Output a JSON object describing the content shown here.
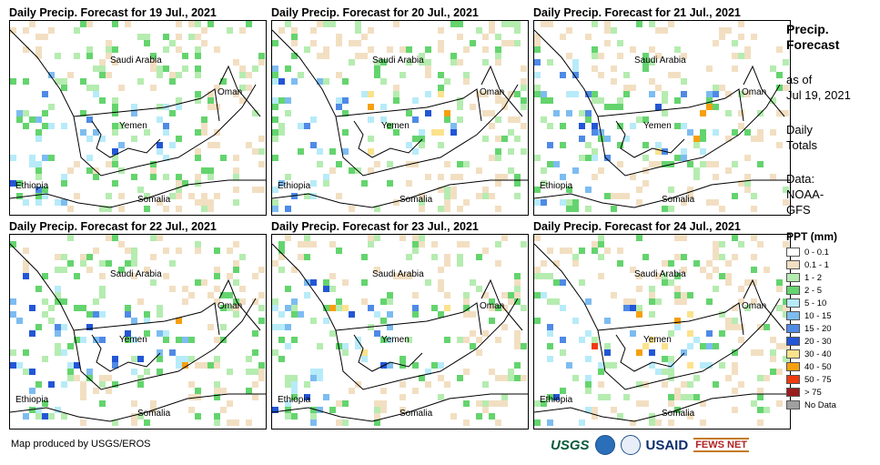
{
  "panels": [
    {
      "title": "Daily Precip. Forecast for 19 Jul., 2021",
      "hot": 1
    },
    {
      "title": "Daily Precip. Forecast for 20 Jul., 2021",
      "hot": 2
    },
    {
      "title": "Daily Precip. Forecast for 21 Jul., 2021",
      "hot": 2
    },
    {
      "title": "Daily Precip. Forecast for 22 Jul., 2021",
      "hot": 2
    },
    {
      "title": "Daily Precip. Forecast for 23 Jul., 2021",
      "hot": 4
    },
    {
      "title": "Daily Precip. Forecast for 24 Jul., 2021",
      "hot": 3
    }
  ],
  "map_labels": {
    "saudi_arabia": "Saudi Arabia",
    "oman": "Oman",
    "yemen": "Yemen",
    "ethiopia": "Ethiopia",
    "somalia": "Somalia"
  },
  "sidebar": {
    "heading1": "Precip.",
    "heading2": "Forecast",
    "asof1": "as of",
    "asof2": "Jul 19, 2021",
    "daily1": "Daily",
    "daily2": "Totals",
    "data1": "Data:",
    "data2": "NOAA-",
    "data3": "GFS"
  },
  "legend": {
    "title": "PPT (mm)",
    "items": [
      {
        "label": "0 - 0.1",
        "color": "#ffffff"
      },
      {
        "label": "0.1 - 1",
        "color": "#f2dfc2"
      },
      {
        "label": "1 - 2",
        "color": "#b5ecb0"
      },
      {
        "label": "2 - 5",
        "color": "#64d46e"
      },
      {
        "label": "5 - 10",
        "color": "#b7ebf9"
      },
      {
        "label": "10 - 15",
        "color": "#7dbcf0"
      },
      {
        "label": "15 - 20",
        "color": "#4f8ae6"
      },
      {
        "label": "20 - 30",
        "color": "#2356d6"
      },
      {
        "label": "30 - 40",
        "color": "#fbe28c"
      },
      {
        "label": "40 - 50",
        "color": "#f6a00e"
      },
      {
        "label": "50 - 75",
        "color": "#f03a10"
      },
      {
        "label": "> 75",
        "color": "#9b1c1c"
      },
      {
        "label": "No Data",
        "color": "#a0a0a0"
      }
    ]
  },
  "footer": {
    "credit": "Map produced by USGS/EROS",
    "logo_usgs": "USGS",
    "logo_usaid": "USAID",
    "logo_fews": "FEWS NET"
  }
}
